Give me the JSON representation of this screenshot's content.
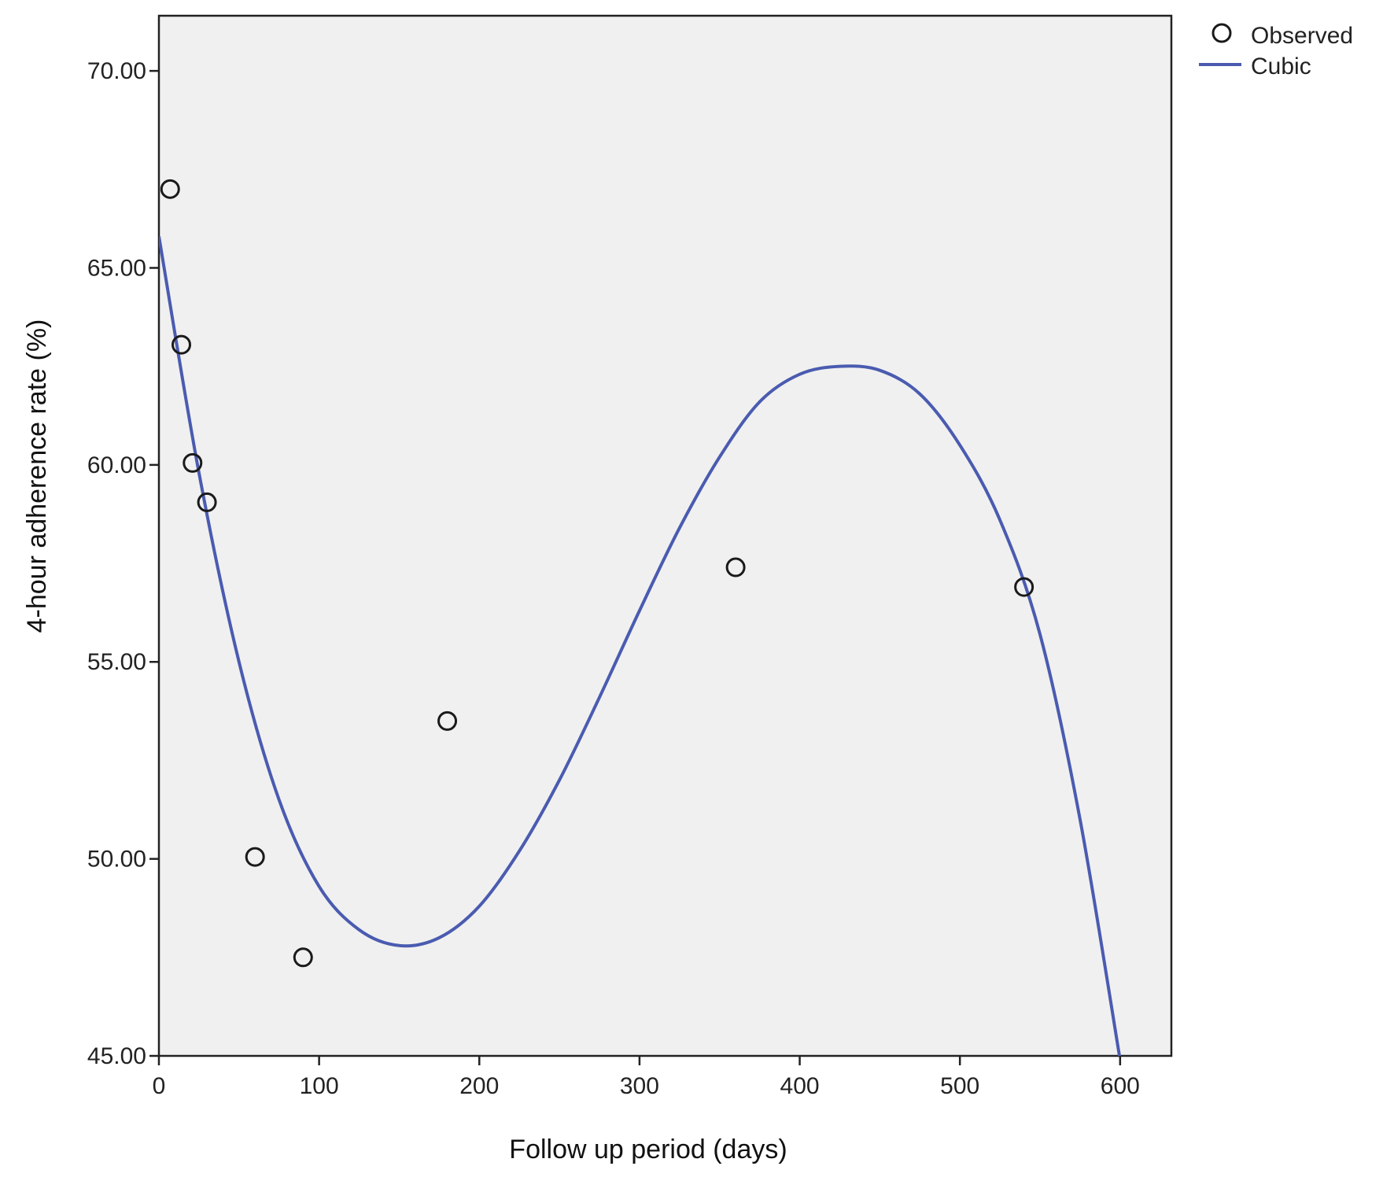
{
  "colors": {
    "plot_background": "#f0f0f0",
    "fit_line": "#4a5bb0",
    "marker_stroke": "#1a1a1a",
    "axis": "#222222"
  },
  "chart_data": {
    "type": "scatter",
    "title": "",
    "xlabel": "Follow up period (days)",
    "ylabel": "4-hour adherence  rate (%)",
    "xlim": [
      0,
      632
    ],
    "ylim": [
      45,
      71.4
    ],
    "x_ticks": [
      0,
      100,
      200,
      300,
      400,
      500,
      600
    ],
    "x_tick_labels": [
      "0",
      "100",
      "200",
      "300",
      "400",
      "500",
      "600"
    ],
    "y_ticks": [
      45,
      50,
      55,
      60,
      65,
      70
    ],
    "y_tick_labels": [
      "45.00",
      "50.00",
      "55.00",
      "60.00",
      "65.00",
      "70.00"
    ],
    "grid": false,
    "legend_position": "top-right outside",
    "series": [
      {
        "name": "Observed",
        "kind": "scatter",
        "marker": "open-circle",
        "x": [
          7,
          14,
          21,
          30,
          60,
          90,
          180,
          360,
          540
        ],
        "y": [
          67.0,
          63.05,
          60.05,
          59.05,
          50.05,
          47.5,
          53.5,
          57.4,
          56.9
        ]
      },
      {
        "name": "Cubic",
        "kind": "line",
        "x": [
          0,
          25,
          50,
          75,
          100,
          125,
          150,
          175,
          200,
          225,
          250,
          275,
          300,
          325,
          350,
          375,
          400,
          425,
          450,
          475,
          500,
          525,
          550,
          575,
          600
        ],
        "y": [
          65.8,
          59.8,
          55.0,
          51.5,
          49.3,
          48.2,
          47.8,
          48.0,
          48.8,
          50.2,
          52.0,
          54.1,
          56.3,
          58.4,
          60.2,
          61.6,
          62.3,
          62.5,
          62.4,
          61.8,
          60.5,
          58.6,
          55.7,
          51.0,
          44.9
        ]
      }
    ]
  }
}
